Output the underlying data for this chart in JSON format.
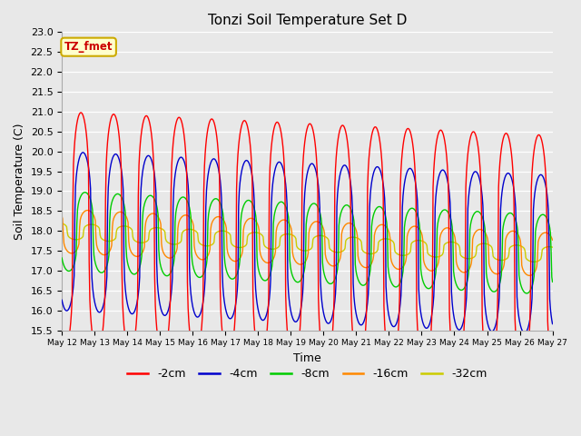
{
  "title": "Tonzi Soil Temperature Set D",
  "xlabel": "Time",
  "ylabel": "Soil Temperature (C)",
  "ylim": [
    15.5,
    23.0
  ],
  "yticks": [
    15.5,
    16.0,
    16.5,
    17.0,
    17.5,
    18.0,
    18.5,
    19.0,
    19.5,
    20.0,
    20.5,
    21.0,
    21.5,
    22.0,
    22.5,
    23.0
  ],
  "legend_label": "TZ_fmet",
  "legend_bg": "#ffffcc",
  "legend_border": "#ccaa00",
  "series_colors": {
    "-2cm": "#ff0000",
    "-4cm": "#0000cc",
    "-8cm": "#00cc00",
    "-16cm": "#ff8800",
    "-32cm": "#cccc00"
  },
  "series_linewidth": 1.0,
  "bg_color": "#e8e8e8",
  "base_temp": 18.0,
  "n_days": 15,
  "start_day": 12,
  "points_per_day": 48,
  "amp_2cm": 3.0,
  "amp_4cm": 2.0,
  "amp_8cm": 1.0,
  "amp_16cm": 0.55,
  "amp_32cm": 0.2,
  "phase_4cm_hr": 1.5,
  "phase_8cm_hr": 3.0,
  "phase_16cm_hr": 5.0,
  "phase_32cm_hr": 8.0,
  "peak_hour": 14,
  "sharpness": 3.5,
  "trend_slope": -0.04
}
